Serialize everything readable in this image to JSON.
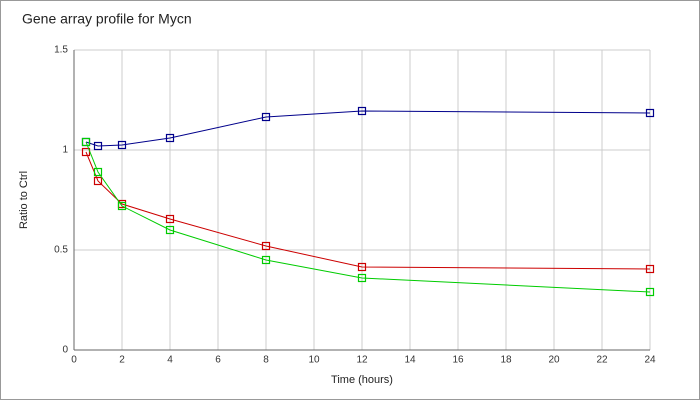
{
  "chart_data": {
    "type": "line",
    "title": "Gene array profile for Mycn",
    "x_label": "Time (hours)",
    "y_label": "Ratio to Ctrl",
    "x": [
      0.5,
      1,
      2,
      4,
      8,
      12,
      24
    ],
    "series": [
      {
        "color": "#00008b",
        "values": [
          1.04,
          1.02,
          1.025,
          1.06,
          1.165,
          1.195,
          1.185
        ]
      },
      {
        "color": "#cc0000",
        "values": [
          0.99,
          0.845,
          0.73,
          0.655,
          0.52,
          0.415,
          0.405
        ]
      },
      {
        "color": "#00cc00",
        "values": [
          1.04,
          0.89,
          0.72,
          0.6,
          0.45,
          0.36,
          0.29
        ]
      }
    ],
    "xlim": [
      0,
      24
    ],
    "xticks": [
      0,
      2,
      4,
      6,
      8,
      10,
      12,
      14,
      16,
      18,
      20,
      22,
      24
    ],
    "ylim": [
      0,
      1.5
    ],
    "yticks": [
      0,
      0.5,
      1,
      1.5
    ],
    "grid": true
  }
}
